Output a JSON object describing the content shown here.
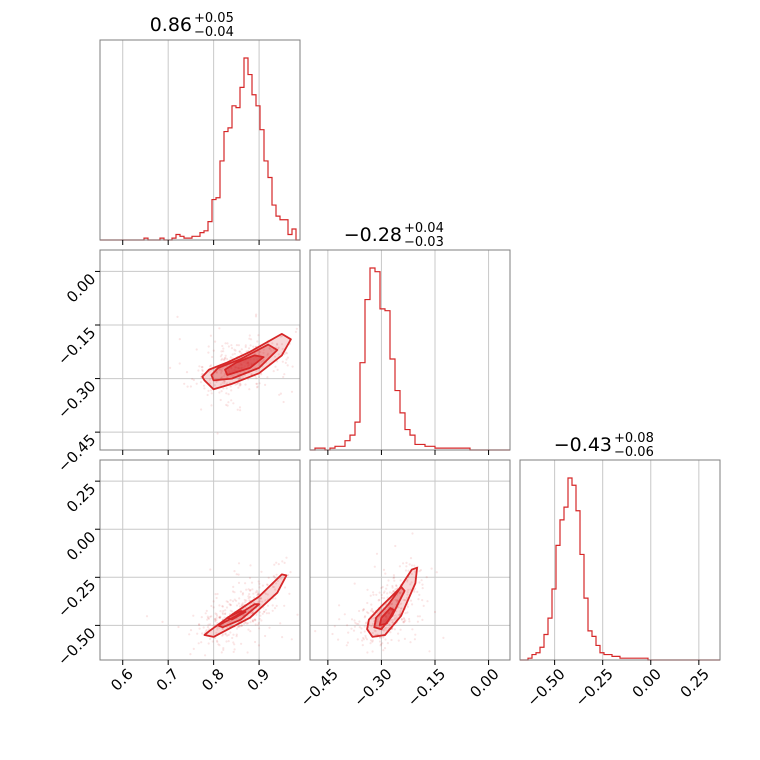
{
  "chart_data": {
    "type": "corner",
    "color": "#d62728",
    "grid": true,
    "titles": [
      {
        "value": "0.86",
        "plus": "+0.05",
        "minus": "−0.04"
      },
      {
        "value": "−0.28",
        "plus": "+0.04",
        "minus": "−0.03"
      },
      {
        "value": "−0.43",
        "plus": "+0.08",
        "minus": "−0.06"
      }
    ],
    "ranges": [
      [
        0.55,
        0.99
      ],
      [
        -0.5,
        0.06
      ],
      [
        -0.68,
        0.36
      ]
    ],
    "ticks": [
      {
        "values": [
          0.6,
          0.7,
          0.8,
          0.9
        ],
        "labels": [
          "0.6",
          "0.7",
          "0.8",
          "0.9"
        ]
      },
      {
        "values": [
          -0.45,
          -0.3,
          -0.15,
          0.0
        ],
        "labels": [
          "−0.45",
          "−0.30",
          "−0.15",
          "0.00"
        ]
      },
      {
        "values": [
          -0.5,
          -0.25,
          0.0,
          0.25
        ],
        "labels": [
          "−0.50",
          "−0.25",
          "0.00",
          "0.25"
        ]
      }
    ],
    "histograms": [
      [
        0,
        0,
        0,
        0,
        0,
        0,
        0,
        0,
        0,
        0,
        0,
        1,
        0,
        0,
        0,
        1,
        0,
        0,
        1,
        3,
        2,
        1,
        1,
        2,
        2,
        4,
        5,
        10,
        22,
        23,
        43,
        59,
        61,
        73,
        72,
        83,
        99,
        90,
        79,
        73,
        60,
        43,
        34,
        19,
        13,
        11,
        11,
        3,
        6,
        0
      ],
      [
        0,
        1,
        1,
        0,
        1,
        2,
        2,
        5,
        8,
        15,
        47,
        81,
        98,
        96,
        76,
        75,
        49,
        32,
        20,
        11,
        8,
        3,
        3,
        2,
        2,
        1,
        1,
        1,
        1,
        1,
        1,
        1,
        0,
        0,
        0,
        0,
        0,
        0,
        0,
        0
      ],
      [
        0,
        0,
        1,
        3,
        4,
        7,
        14,
        23,
        39,
        63,
        77,
        84,
        100,
        96,
        82,
        58,
        34,
        16,
        13,
        8,
        4,
        3,
        3,
        2,
        2,
        1,
        1,
        1,
        1,
        1,
        1,
        1,
        0,
        0,
        0,
        0,
        0,
        0,
        0,
        0,
        0,
        0,
        0,
        0,
        0,
        0,
        0,
        0,
        0,
        0
      ]
    ],
    "pairs": [
      {
        "xi": 0,
        "yi": 1,
        "contours": [
          [
            [
              0.78,
              -0.305
            ],
            [
              0.8,
              -0.33
            ],
            [
              0.84,
              -0.315
            ],
            [
              0.9,
              -0.285
            ],
            [
              0.95,
              -0.235
            ],
            [
              0.97,
              -0.19
            ],
            [
              0.95,
              -0.175
            ],
            [
              0.88,
              -0.225
            ],
            [
              0.83,
              -0.255
            ],
            [
              0.79,
              -0.275
            ],
            [
              0.775,
              -0.295
            ]
          ],
          [
            [
              0.8,
              -0.305
            ],
            [
              0.84,
              -0.3
            ],
            [
              0.9,
              -0.27
            ],
            [
              0.94,
              -0.22
            ],
            [
              0.92,
              -0.205
            ],
            [
              0.86,
              -0.245
            ],
            [
              0.81,
              -0.27
            ],
            [
              0.795,
              -0.29
            ]
          ],
          [
            [
              0.83,
              -0.29
            ],
            [
              0.88,
              -0.27
            ],
            [
              0.91,
              -0.24
            ],
            [
              0.89,
              -0.235
            ],
            [
              0.85,
              -0.255
            ],
            [
              0.825,
              -0.275
            ]
          ]
        ]
      },
      {
        "xi": 0,
        "yi": 2,
        "contours": [
          [
            [
              0.78,
              -0.55
            ],
            [
              0.8,
              -0.56
            ],
            [
              0.88,
              -0.46
            ],
            [
              0.94,
              -0.33
            ],
            [
              0.96,
              -0.24
            ],
            [
              0.95,
              -0.235
            ],
            [
              0.9,
              -0.35
            ],
            [
              0.84,
              -0.445
            ],
            [
              0.79,
              -0.53
            ]
          ],
          [
            [
              0.82,
              -0.51
            ],
            [
              0.86,
              -0.47
            ],
            [
              0.9,
              -0.39
            ],
            [
              0.89,
              -0.39
            ],
            [
              0.85,
              -0.45
            ],
            [
              0.81,
              -0.5
            ]
          ],
          [
            [
              0.84,
              -0.47
            ],
            [
              0.87,
              -0.43
            ],
            [
              0.86,
              -0.425
            ],
            [
              0.83,
              -0.46
            ]
          ]
        ]
      },
      {
        "xi": 1,
        "yi": 2,
        "contours": [
          [
            [
              -0.34,
              -0.52
            ],
            [
              -0.325,
              -0.56
            ],
            [
              -0.29,
              -0.55
            ],
            [
              -0.245,
              -0.45
            ],
            [
              -0.205,
              -0.28
            ],
            [
              -0.2,
              -0.2
            ],
            [
              -0.215,
              -0.21
            ],
            [
              -0.25,
              -0.31
            ],
            [
              -0.3,
              -0.4
            ],
            [
              -0.335,
              -0.47
            ]
          ],
          [
            [
              -0.32,
              -0.51
            ],
            [
              -0.3,
              -0.52
            ],
            [
              -0.27,
              -0.45
            ],
            [
              -0.235,
              -0.32
            ],
            [
              -0.245,
              -0.3
            ],
            [
              -0.28,
              -0.39
            ],
            [
              -0.315,
              -0.46
            ]
          ],
          [
            [
              -0.305,
              -0.5
            ],
            [
              -0.285,
              -0.49
            ],
            [
              -0.265,
              -0.42
            ],
            [
              -0.275,
              -0.41
            ],
            [
              -0.3,
              -0.46
            ]
          ]
        ]
      }
    ]
  }
}
